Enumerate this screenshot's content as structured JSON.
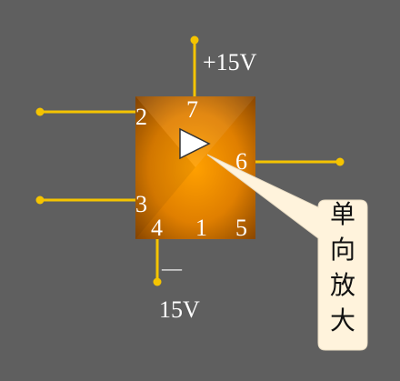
{
  "colors": {
    "background": "#5f5f5f",
    "wire": "#f5c400",
    "chip_center": "#ffa000",
    "chip_edge": "#a85a00",
    "callout_fill": "#fff3dc",
    "label_text": "#ffffff"
  },
  "supply": {
    "positive": "+15V",
    "negative_sign": "—",
    "negative_value": "15V"
  },
  "pins": {
    "p2": "2",
    "p3": "3",
    "p7": "7",
    "p6": "6",
    "p4": "4",
    "p1": "1",
    "p5": "5"
  },
  "symbol": "op-amp-triangle-icon",
  "callout": {
    "chars": [
      "单",
      "向",
      "放",
      "大"
    ]
  }
}
